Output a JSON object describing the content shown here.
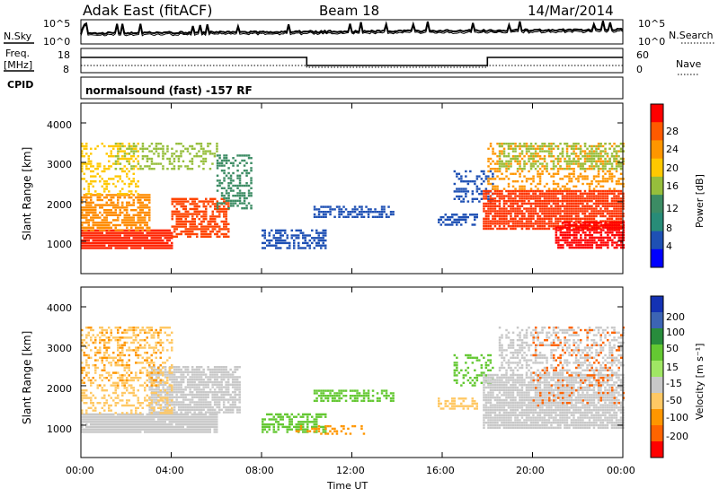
{
  "header": {
    "station": "Adak East (fitACF)",
    "beam": "Beam 18",
    "date": "14/Mar/2014"
  },
  "panels": {
    "nsky_label": "N.Sky",
    "nsearch_label": "N.Search",
    "noise_ticks_left": [
      "10^5",
      "10^0"
    ],
    "noise_ticks_right": [
      "10^5",
      "10^0"
    ],
    "freq_label_line1": "Freq.",
    "freq_label_line2": "[MHz]",
    "freq_ticks": [
      "18",
      "8"
    ],
    "nave_label": "Nave",
    "nave_ticks": [
      "60",
      "0"
    ],
    "cpid_label": "CPID",
    "cpid_text": "normalsound (fast) -157 RF"
  },
  "axes": {
    "ylabel": "Slant Range [km]",
    "xlabel": "Time UT",
    "yticks": [
      "1000",
      "2000",
      "3000",
      "4000"
    ],
    "xticks": [
      "00:00",
      "04:00",
      "08:00",
      "12:00",
      "16:00",
      "20:00",
      "00:00"
    ]
  },
  "colorbars": {
    "power_label": "Power [dB]",
    "power_ticks": [
      "28",
      "24",
      "20",
      "16",
      "12",
      "8",
      "4"
    ],
    "power_colors": [
      "#ff0000",
      "#ff5a00",
      "#ff9600",
      "#ffc800",
      "#96be3c",
      "#3c8c64",
      "#288c78",
      "#1e50b4",
      "#0000ff"
    ],
    "velocity_label": "Velocity [m s⁻¹]",
    "velocity_ticks": [
      "200",
      "100",
      "50",
      "15",
      "-15",
      "-50",
      "-100",
      "-200"
    ],
    "velocity_colors": [
      "#1432b4",
      "#3c64b4",
      "#288c3c",
      "#64c832",
      "#a0e664",
      "#c8c8c8",
      "#ffc864",
      "#ff9600",
      "#ff6400",
      "#ff0000"
    ]
  },
  "chart_data": [
    {
      "type": "heatmap",
      "title": "Power",
      "x_range": [
        "00:00",
        "00:00"
      ],
      "ylim": [
        180,
        4500
      ],
      "blobs": [
        {
          "t0": 0.0,
          "t1": 4.0,
          "r0": 800,
          "r1": 1300,
          "color": "#ff2200",
          "density": 0.95
        },
        {
          "t0": 0.0,
          "t1": 3.0,
          "r0": 1300,
          "r1": 2200,
          "color": "#ff8c00",
          "density": 0.7
        },
        {
          "t0": 0.0,
          "t1": 2.5,
          "r0": 2200,
          "r1": 3500,
          "color": "#ffc800",
          "density": 0.35
        },
        {
          "t0": 1.5,
          "t1": 6.0,
          "r0": 2800,
          "r1": 3500,
          "color": "#96be3c",
          "density": 0.35
        },
        {
          "t0": 4.0,
          "t1": 6.5,
          "r0": 1100,
          "r1": 2100,
          "color": "#ff4400",
          "density": 0.7
        },
        {
          "t0": 6.0,
          "t1": 7.5,
          "r0": 1800,
          "r1": 3200,
          "color": "#3c8c64",
          "density": 0.5
        },
        {
          "t0": 8.0,
          "t1": 10.8,
          "r0": 800,
          "r1": 1300,
          "color": "#1e50b4",
          "density": 0.6
        },
        {
          "t0": 10.3,
          "t1": 13.8,
          "r0": 1600,
          "r1": 1900,
          "color": "#1e50b4",
          "density": 0.55
        },
        {
          "t0": 15.8,
          "t1": 17.5,
          "r0": 1400,
          "r1": 1700,
          "color": "#1e50b4",
          "density": 0.5
        },
        {
          "t0": 16.5,
          "t1": 18.2,
          "r0": 2000,
          "r1": 2800,
          "color": "#1e50b4",
          "density": 0.35
        },
        {
          "t0": 17.8,
          "t1": 24.0,
          "r0": 1300,
          "r1": 2300,
          "color": "#ff3300",
          "density": 0.85
        },
        {
          "t0": 18.0,
          "t1": 24.0,
          "r0": 2300,
          "r1": 3500,
          "color": "#ff9600",
          "density": 0.35
        },
        {
          "t0": 18.5,
          "t1": 24.0,
          "r0": 2800,
          "r1": 3500,
          "color": "#96be3c",
          "density": 0.4
        },
        {
          "t0": 21.0,
          "t1": 24.0,
          "r0": 800,
          "r1": 1500,
          "color": "#ff0000",
          "density": 0.8
        }
      ]
    },
    {
      "type": "heatmap",
      "title": "Velocity",
      "x_range": [
        "00:00",
        "00:00"
      ],
      "ylim": [
        180,
        4500
      ],
      "blobs": [
        {
          "t0": 0.0,
          "t1": 6.0,
          "r0": 800,
          "r1": 1300,
          "color": "#c8c8c8",
          "density": 0.95
        },
        {
          "t0": 3.0,
          "t1": 7.0,
          "r0": 1300,
          "r1": 2500,
          "color": "#c8c8c8",
          "density": 0.8
        },
        {
          "t0": 0.0,
          "t1": 4.0,
          "r0": 1300,
          "r1": 3500,
          "color": "#ffc864",
          "density": 0.35
        },
        {
          "t0": 0.0,
          "t1": 3.5,
          "r0": 2000,
          "r1": 3500,
          "color": "#ff9600",
          "density": 0.15
        },
        {
          "t0": 8.0,
          "t1": 10.8,
          "r0": 800,
          "r1": 1300,
          "color": "#64c832",
          "density": 0.55
        },
        {
          "t0": 9.5,
          "t1": 12.5,
          "r0": 750,
          "r1": 1000,
          "color": "#ff9600",
          "density": 0.35
        },
        {
          "t0": 10.3,
          "t1": 13.8,
          "r0": 1600,
          "r1": 1900,
          "color": "#64c832",
          "density": 0.6
        },
        {
          "t0": 15.8,
          "t1": 17.5,
          "r0": 1400,
          "r1": 1700,
          "color": "#ffc864",
          "density": 0.45
        },
        {
          "t0": 16.5,
          "t1": 18.2,
          "r0": 2000,
          "r1": 2800,
          "color": "#64c832",
          "density": 0.3
        },
        {
          "t0": 17.8,
          "t1": 24.0,
          "r0": 900,
          "r1": 2300,
          "color": "#c8c8c8",
          "density": 0.85
        },
        {
          "t0": 18.5,
          "t1": 24.0,
          "r0": 2300,
          "r1": 3500,
          "color": "#c8c8c8",
          "density": 0.45
        },
        {
          "t0": 20.0,
          "t1": 24.0,
          "r0": 1500,
          "r1": 3500,
          "color": "#ff6400",
          "density": 0.12
        }
      ]
    }
  ]
}
